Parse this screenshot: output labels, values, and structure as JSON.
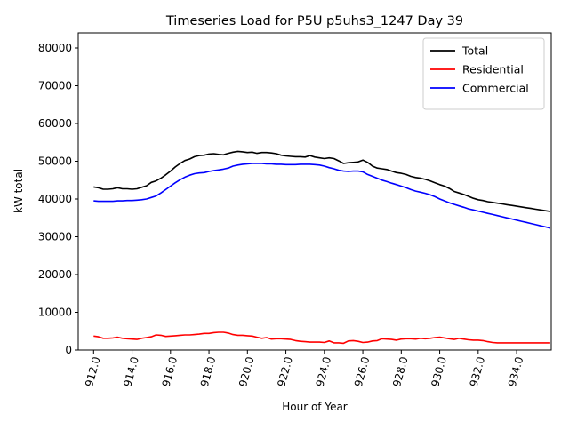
{
  "chart_data": {
    "type": "line",
    "title": "Timeseries Load for P5U p5uhs3_1247  Day 39",
    "xlabel": "Hour of Year",
    "ylabel": "kW total",
    "xlim": [
      911.2,
      935.8
    ],
    "ylim": [
      0,
      84000
    ],
    "xticks": [
      912,
      914,
      916,
      918,
      920,
      922,
      924,
      926,
      928,
      930,
      932,
      934
    ],
    "xtick_labels": [
      "912.0",
      "914.0",
      "916.0",
      "918.0",
      "920.0",
      "922.0",
      "924.0",
      "926.0",
      "928.0",
      "930.0",
      "932.0",
      "934.0"
    ],
    "yticks": [
      0,
      10000,
      20000,
      30000,
      40000,
      50000,
      60000,
      70000,
      80000
    ],
    "ytick_labels": [
      "0",
      "10000",
      "20000",
      "30000",
      "40000",
      "50000",
      "60000",
      "70000",
      "80000"
    ],
    "legend_position": "top-right",
    "x": [
      912.0,
      912.25,
      912.5,
      912.75,
      913.0,
      913.25,
      913.5,
      913.75,
      914.0,
      914.25,
      914.5,
      914.75,
      915.0,
      915.25,
      915.5,
      915.75,
      916.0,
      916.25,
      916.5,
      916.75,
      917.0,
      917.25,
      917.5,
      917.75,
      918.0,
      918.25,
      918.5,
      918.75,
      919.0,
      919.25,
      919.5,
      919.75,
      920.0,
      920.25,
      920.5,
      920.75,
      921.0,
      921.25,
      921.5,
      921.75,
      922.0,
      922.25,
      922.5,
      922.75,
      923.0,
      923.25,
      923.5,
      923.75,
      924.0,
      924.25,
      924.5,
      924.75,
      925.0,
      925.25,
      925.5,
      925.75,
      926.0,
      926.25,
      926.5,
      926.75,
      927.0,
      927.25,
      927.5,
      927.75,
      928.0,
      928.25,
      928.5,
      928.75,
      929.0,
      929.25,
      929.5,
      929.75,
      930.0,
      930.25,
      930.5,
      930.75,
      931.0,
      931.25,
      931.5,
      931.75,
      932.0,
      932.25,
      932.5,
      932.75,
      933.0,
      933.25,
      933.5,
      933.75,
      934.0,
      934.25,
      934.5,
      934.75,
      935.0,
      935.25,
      935.5,
      935.75
    ],
    "series": [
      {
        "name": "Total",
        "color": "#000000",
        "values": [
          43200,
          43000,
          42600,
          42600,
          42700,
          43000,
          42700,
          42700,
          42600,
          42700,
          43100,
          43500,
          44400,
          44800,
          45500,
          46400,
          47400,
          48500,
          49400,
          50200,
          50600,
          51200,
          51500,
          51600,
          51900,
          52000,
          51800,
          51700,
          52100,
          52400,
          52600,
          52500,
          52300,
          52400,
          52100,
          52300,
          52300,
          52200,
          52000,
          51600,
          51400,
          51300,
          51200,
          51200,
          51100,
          51500,
          51100,
          50900,
          50700,
          50900,
          50700,
          50100,
          49400,
          49600,
          49700,
          49800,
          50300,
          49700,
          48700,
          48200,
          48000,
          47800,
          47400,
          47000,
          46800,
          46500,
          46000,
          45700,
          45500,
          45200,
          44800,
          44300,
          43800,
          43400,
          42800,
          42000,
          41600,
          41200,
          40700,
          40200,
          39800,
          39600,
          39300,
          39100,
          38900,
          38700,
          38500,
          38300,
          38100,
          37900,
          37700,
          37500,
          37300,
          37100,
          36900,
          36700
        ]
      },
      {
        "name": "Residential",
        "color": "#ff0000",
        "values": [
          3700,
          3500,
          3100,
          3100,
          3200,
          3400,
          3100,
          3000,
          2900,
          2800,
          3100,
          3300,
          3500,
          4000,
          3900,
          3600,
          3700,
          3800,
          3900,
          4000,
          4000,
          4100,
          4200,
          4400,
          4400,
          4600,
          4700,
          4700,
          4500,
          4100,
          3900,
          3900,
          3800,
          3700,
          3400,
          3100,
          3300,
          2900,
          3000,
          3000,
          2900,
          2800,
          2500,
          2300,
          2200,
          2100,
          2100,
          2100,
          2000,
          2400,
          1900,
          1900,
          1800,
          2400,
          2500,
          2300,
          2000,
          2100,
          2400,
          2500,
          3000,
          2900,
          2800,
          2600,
          2900,
          3000,
          3000,
          2900,
          3100,
          3000,
          3100,
          3300,
          3400,
          3200,
          3000,
          2800,
          3100,
          2900,
          2700,
          2600,
          2600,
          2500,
          2200,
          2000,
          1900,
          1900,
          1900,
          1900,
          1900,
          1900,
          1900,
          1900,
          1900,
          1900,
          1900,
          1900
        ]
      },
      {
        "name": "Commercial",
        "color": "#0000ff",
        "values": [
          39500,
          39400,
          39400,
          39400,
          39400,
          39500,
          39500,
          39600,
          39600,
          39700,
          39800,
          40000,
          40400,
          40800,
          41600,
          42500,
          43400,
          44300,
          45100,
          45800,
          46300,
          46700,
          46900,
          47000,
          47300,
          47500,
          47700,
          47900,
          48200,
          48700,
          49000,
          49200,
          49300,
          49400,
          49400,
          49400,
          49300,
          49300,
          49200,
          49200,
          49100,
          49100,
          49100,
          49200,
          49200,
          49200,
          49100,
          49000,
          48700,
          48300,
          48000,
          47600,
          47400,
          47300,
          47400,
          47400,
          47200,
          46500,
          46000,
          45500,
          45000,
          44600,
          44200,
          43800,
          43400,
          43000,
          42500,
          42100,
          41800,
          41500,
          41100,
          40600,
          40000,
          39500,
          39000,
          38600,
          38200,
          37800,
          37400,
          37100,
          36800,
          36500,
          36200,
          35900,
          35600,
          35300,
          35000,
          34700,
          34400,
          34100,
          33800,
          33500,
          33200,
          32900,
          32600,
          32300
        ]
      }
    ]
  }
}
